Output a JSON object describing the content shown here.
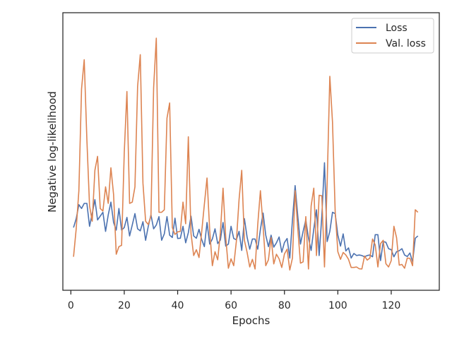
{
  "chart_data": {
    "type": "line",
    "title": "",
    "xlabel": "Epochs",
    "ylabel": "Negative log-likelihood",
    "xlim": [
      -3,
      138
    ],
    "ylim": [
      0,
      1
    ],
    "x_ticks": [
      0,
      20,
      40,
      60,
      80,
      100,
      120
    ],
    "y_ticks_visible": false,
    "grid": false,
    "legend_position": "top-right",
    "series": [
      {
        "name": "Loss",
        "color": "#4c72b0",
        "x_start": 1,
        "values": [
          0.205,
          0.24,
          0.295,
          0.28,
          0.3,
          0.3,
          0.21,
          0.26,
          0.315,
          0.235,
          0.25,
          0.265,
          0.19,
          0.255,
          0.305,
          0.225,
          0.195,
          0.28,
          0.195,
          0.205,
          0.245,
          0.172,
          0.215,
          0.26,
          0.2,
          0.192,
          0.228,
          0.155,
          0.21,
          0.255,
          0.2,
          0.215,
          0.248,
          0.155,
          0.18,
          0.248,
          0.175,
          0.166,
          0.242,
          0.162,
          0.163,
          0.21,
          0.145,
          0.185,
          0.25,
          0.172,
          0.163,
          0.198,
          0.158,
          0.13,
          0.225,
          0.14,
          0.16,
          0.2,
          0.142,
          0.156,
          0.225,
          0.132,
          0.14,
          0.21,
          0.162,
          0.157,
          0.19,
          0.115,
          0.24,
          0.168,
          0.12,
          0.16,
          0.16,
          0.12,
          0.198,
          0.262,
          0.175,
          0.13,
          0.175,
          0.128,
          0.145,
          0.168,
          0.108,
          0.146,
          0.162,
          0.085,
          0.235,
          0.37,
          0.25,
          0.14,
          0.19,
          0.235,
          0.164,
          0.115,
          0.2,
          0.275,
          0.095,
          0.25,
          0.46,
          0.15,
          0.19,
          0.265,
          0.26,
          0.175,
          0.132,
          0.18,
          0.113,
          0.125,
          0.085,
          0.103,
          0.095,
          0.097,
          0.095,
          0.09,
          0.095,
          0.097,
          0.09,
          0.177,
          0.177,
          0.075,
          0.15,
          0.147,
          0.122,
          0.118,
          0.09,
          0.11,
          0.114,
          0.122,
          0.097,
          0.091,
          0.105,
          0.07,
          0.163,
          0.172
        ]
      },
      {
        "name": "Val. loss",
        "color": "#dd8452",
        "x_start": 1,
        "values": [
          0.09,
          0.2,
          0.35,
          0.75,
          0.865,
          0.55,
          0.29,
          0.23,
          0.43,
          0.485,
          0.28,
          0.27,
          0.365,
          0.3,
          0.44,
          0.335,
          0.1,
          0.13,
          0.135,
          0.5,
          0.74,
          0.3,
          0.305,
          0.365,
          0.76,
          0.885,
          0.38,
          0.23,
          0.217,
          0.25,
          0.755,
          0.95,
          0.265,
          0.265,
          0.275,
          0.635,
          0.695,
          0.205,
          0.178,
          0.188,
          0.19,
          0.305,
          0.22,
          0.562,
          0.182,
          0.095,
          0.118,
          0.087,
          0.188,
          0.296,
          0.4,
          0.195,
          0.055,
          0.11,
          0.078,
          0.185,
          0.36,
          0.168,
          0.045,
          0.082,
          0.055,
          0.152,
          0.315,
          0.43,
          0.155,
          0.108,
          0.05,
          0.08,
          0.042,
          0.217,
          0.35,
          0.21,
          0.055,
          0.078,
          0.165,
          0.062,
          0.1,
          0.082,
          0.048,
          0.101,
          0.12,
          0.038,
          0.085,
          0.35,
          0.2,
          0.065,
          0.07,
          0.248,
          0.042,
          0.29,
          0.36,
          0.095,
          0.332,
          0.33,
          0.05,
          0.38,
          0.8,
          0.62,
          0.27,
          0.11,
          0.08,
          0.107,
          0.097,
          0.08,
          0.048,
          0.048,
          0.05,
          0.043,
          0.042,
          0.093,
          0.077,
          0.085,
          0.16,
          0.137,
          0.05,
          0.142,
          0.155,
          0.063,
          0.05,
          0.075,
          0.21,
          0.165,
          0.057,
          0.06,
          0.045,
          0.085,
          0.084,
          0.055,
          0.275,
          0.265
        ]
      }
    ]
  }
}
